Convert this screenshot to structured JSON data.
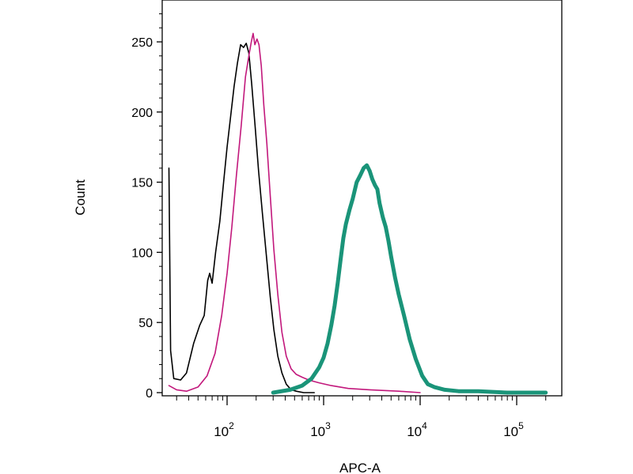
{
  "chart_data": {
    "type": "line",
    "title": "",
    "xlabel": "APC-A",
    "ylabel": "Count",
    "x_scale": "log",
    "xlim": [
      25,
      200000
    ],
    "ylim": [
      0,
      275
    ],
    "y_ticks": [
      0,
      50,
      100,
      150,
      200,
      250
    ],
    "y_tick_labels": [
      "0",
      "50",
      "100",
      "150",
      "200",
      "250"
    ],
    "x_ticks": [
      {
        "value": 100,
        "base": "10",
        "exp": "2"
      },
      {
        "value": 1000,
        "base": "10",
        "exp": "3"
      },
      {
        "value": 10000,
        "base": "10",
        "exp": "4"
      },
      {
        "value": 100000,
        "base": "10",
        "exp": "5"
      }
    ],
    "grid": false,
    "legend": "none",
    "series": [
      {
        "color": "#000000",
        "stroke_style": "thin",
        "points": [
          [
            25,
            160
          ],
          [
            26,
            30
          ],
          [
            28,
            10
          ],
          [
            33,
            9
          ],
          [
            38,
            14
          ],
          [
            45,
            35
          ],
          [
            52,
            48
          ],
          [
            58,
            55
          ],
          [
            63,
            80
          ],
          [
            66,
            85
          ],
          [
            70,
            78
          ],
          [
            76,
            100
          ],
          [
            84,
            122
          ],
          [
            92,
            150
          ],
          [
            100,
            175
          ],
          [
            108,
            195
          ],
          [
            118,
            218
          ],
          [
            128,
            235
          ],
          [
            138,
            248
          ],
          [
            148,
            246
          ],
          [
            158,
            249
          ],
          [
            168,
            242
          ],
          [
            180,
            220
          ],
          [
            195,
            190
          ],
          [
            212,
            158
          ],
          [
            232,
            128
          ],
          [
            255,
            98
          ],
          [
            280,
            68
          ],
          [
            305,
            45
          ],
          [
            335,
            26
          ],
          [
            370,
            14
          ],
          [
            410,
            6
          ],
          [
            460,
            2
          ],
          [
            520,
            1
          ],
          [
            620,
            0
          ],
          [
            800,
            0
          ]
        ]
      },
      {
        "color": "#c2187c",
        "stroke_style": "thin",
        "points": [
          [
            25,
            5
          ],
          [
            30,
            2
          ],
          [
            38,
            1
          ],
          [
            50,
            4
          ],
          [
            62,
            12
          ],
          [
            75,
            28
          ],
          [
            88,
            55
          ],
          [
            100,
            85
          ],
          [
            112,
            118
          ],
          [
            125,
            155
          ],
          [
            140,
            190
          ],
          [
            155,
            225
          ],
          [
            168,
            240
          ],
          [
            178,
            250
          ],
          [
            186,
            256
          ],
          [
            194,
            248
          ],
          [
            204,
            252
          ],
          [
            214,
            248
          ],
          [
            226,
            233
          ],
          [
            240,
            205
          ],
          [
            258,
            178
          ],
          [
            280,
            140
          ],
          [
            305,
            102
          ],
          [
            335,
            70
          ],
          [
            370,
            43
          ],
          [
            410,
            26
          ],
          [
            460,
            17
          ],
          [
            520,
            13
          ],
          [
            600,
            11
          ],
          [
            700,
            9
          ],
          [
            900,
            7
          ],
          [
            1200,
            5
          ],
          [
            1800,
            3
          ],
          [
            3000,
            2
          ],
          [
            6000,
            1
          ],
          [
            10000,
            0
          ]
        ]
      },
      {
        "color": "#1a9479",
        "stroke_style": "thick",
        "points": [
          [
            300,
            0
          ],
          [
            450,
            2
          ],
          [
            600,
            5
          ],
          [
            750,
            10
          ],
          [
            900,
            18
          ],
          [
            1000,
            25
          ],
          [
            1100,
            35
          ],
          [
            1200,
            48
          ],
          [
            1300,
            62
          ],
          [
            1400,
            78
          ],
          [
            1500,
            95
          ],
          [
            1600,
            110
          ],
          [
            1700,
            120
          ],
          [
            1850,
            130
          ],
          [
            2000,
            138
          ],
          [
            2200,
            150
          ],
          [
            2400,
            155
          ],
          [
            2600,
            160
          ],
          [
            2800,
            162
          ],
          [
            3000,
            158
          ],
          [
            3200,
            152
          ],
          [
            3400,
            148
          ],
          [
            3600,
            145
          ],
          [
            3800,
            135
          ],
          [
            4100,
            125
          ],
          [
            4400,
            118
          ],
          [
            4700,
            108
          ],
          [
            5000,
            97
          ],
          [
            5500,
            82
          ],
          [
            6000,
            70
          ],
          [
            6800,
            55
          ],
          [
            7800,
            38
          ],
          [
            9000,
            24
          ],
          [
            10500,
            12
          ],
          [
            12000,
            6
          ],
          [
            14000,
            4
          ],
          [
            18000,
            2
          ],
          [
            25000,
            1
          ],
          [
            40000,
            1
          ],
          [
            80000,
            0
          ],
          [
            200000,
            0
          ]
        ]
      }
    ]
  }
}
